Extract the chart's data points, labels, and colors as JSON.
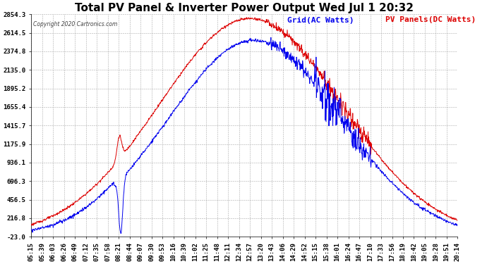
{
  "title": "Total PV Panel & Inverter Power Output Wed Jul 1 20:32",
  "copyright": "Copyright 2020 Cartronics.com",
  "legend_blue": "Grid(AC Watts)",
  "legend_red": "PV Panels(DC Watts)",
  "blue_color": "#0000ee",
  "red_color": "#dd0000",
  "background_color": "#ffffff",
  "grid_color": "#aaaaaa",
  "yticks": [
    -23.0,
    216.8,
    456.5,
    696.3,
    936.1,
    1175.9,
    1415.7,
    1655.4,
    1895.2,
    2135.0,
    2374.8,
    2614.5,
    2854.3
  ],
  "xtick_labels": [
    "05:15",
    "05:39",
    "06:03",
    "06:26",
    "06:49",
    "07:12",
    "07:35",
    "07:58",
    "08:21",
    "08:44",
    "09:07",
    "09:30",
    "09:53",
    "10:16",
    "10:39",
    "11:02",
    "11:25",
    "11:48",
    "12:11",
    "12:34",
    "12:57",
    "13:20",
    "13:43",
    "14:06",
    "14:29",
    "14:52",
    "15:15",
    "15:38",
    "16:01",
    "16:24",
    "16:47",
    "17:10",
    "17:33",
    "17:56",
    "18:19",
    "18:42",
    "19:05",
    "19:28",
    "19:51",
    "20:14"
  ],
  "ymin": -23.0,
  "ymax": 2854.3,
  "title_fontsize": 11,
  "axis_fontsize": 6.5,
  "legend_fontsize": 8
}
